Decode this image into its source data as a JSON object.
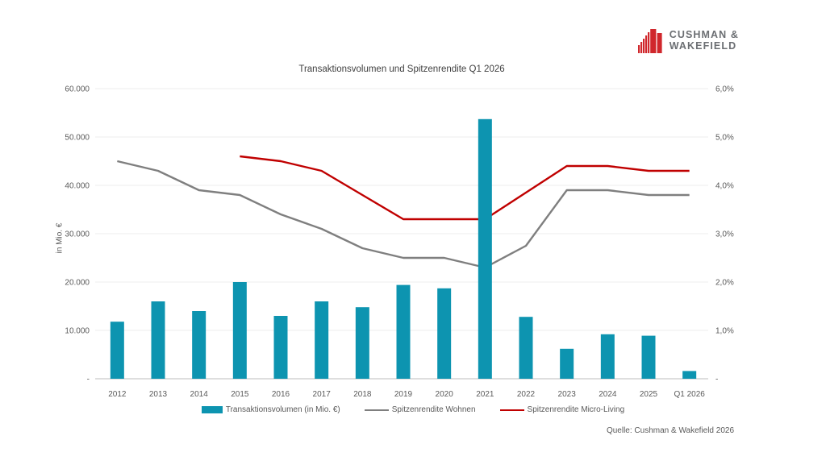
{
  "logo": {
    "line1": "CUSHMAN &",
    "line2": "WAKEFIELD"
  },
  "source": "Quelle: Cushman & Wakefield 2026",
  "colors": {
    "bar": "#0d94b0",
    "line_wohnen": "#7f7f7f",
    "line_micro_living": "#c00000",
    "grid": "#ececec",
    "axis": "#c9c9c9",
    "tick_text": "#595959",
    "logo_red": "#d0272c",
    "logo_gray": "#6b6e72"
  },
  "chart_data": {
    "type": "combo-bar-line",
    "title": "Transaktionsvolumen und Spitzenrendite Q1 2026",
    "xlabel": "",
    "ylabel_left": "in Mio. €",
    "legend_position": "bottom",
    "grid": "horizontal",
    "categories": [
      "2012",
      "2013",
      "2014",
      "2015",
      "2016",
      "2017",
      "2018",
      "2019",
      "2020",
      "2021",
      "2022",
      "2023",
      "2024",
      "2025",
      "Q1 2026"
    ],
    "bar_series": {
      "name": "Transaktionsvolumen (in Mio. €)",
      "axis": "left",
      "color": "#0d94b0",
      "values": [
        11800,
        16000,
        14000,
        20000,
        13000,
        16000,
        14800,
        19400,
        18700,
        53700,
        12800,
        6200,
        9200,
        8900,
        1600
      ]
    },
    "line_series": [
      {
        "name": "Spitzenrendite Wohnen",
        "axis": "right",
        "color": "#7f7f7f",
        "values": [
          4.5,
          4.3,
          3.9,
          3.8,
          3.4,
          3.1,
          2.7,
          2.5,
          2.5,
          2.3,
          2.75,
          3.9,
          3.9,
          3.8,
          3.8
        ]
      },
      {
        "name": "Spitzenrendite Micro-Living",
        "axis": "right",
        "color": "#c00000",
        "values": [
          null,
          null,
          null,
          4.6,
          4.5,
          4.3,
          3.8,
          3.3,
          3.3,
          3.3,
          3.85,
          4.4,
          4.4,
          4.3,
          4.3
        ]
      }
    ],
    "left_axis": {
      "min": 0,
      "max": 60000,
      "ticks": [
        "60.000",
        "50.000",
        "40.000",
        "30.000",
        "20.000",
        "10.000",
        "-"
      ]
    },
    "right_axis": {
      "min": 0,
      "max": 6.0,
      "ticks": [
        "6,0%",
        "5,0%",
        "4,0%",
        "3,0%",
        "2,0%",
        "1,0%",
        "-"
      ]
    }
  }
}
